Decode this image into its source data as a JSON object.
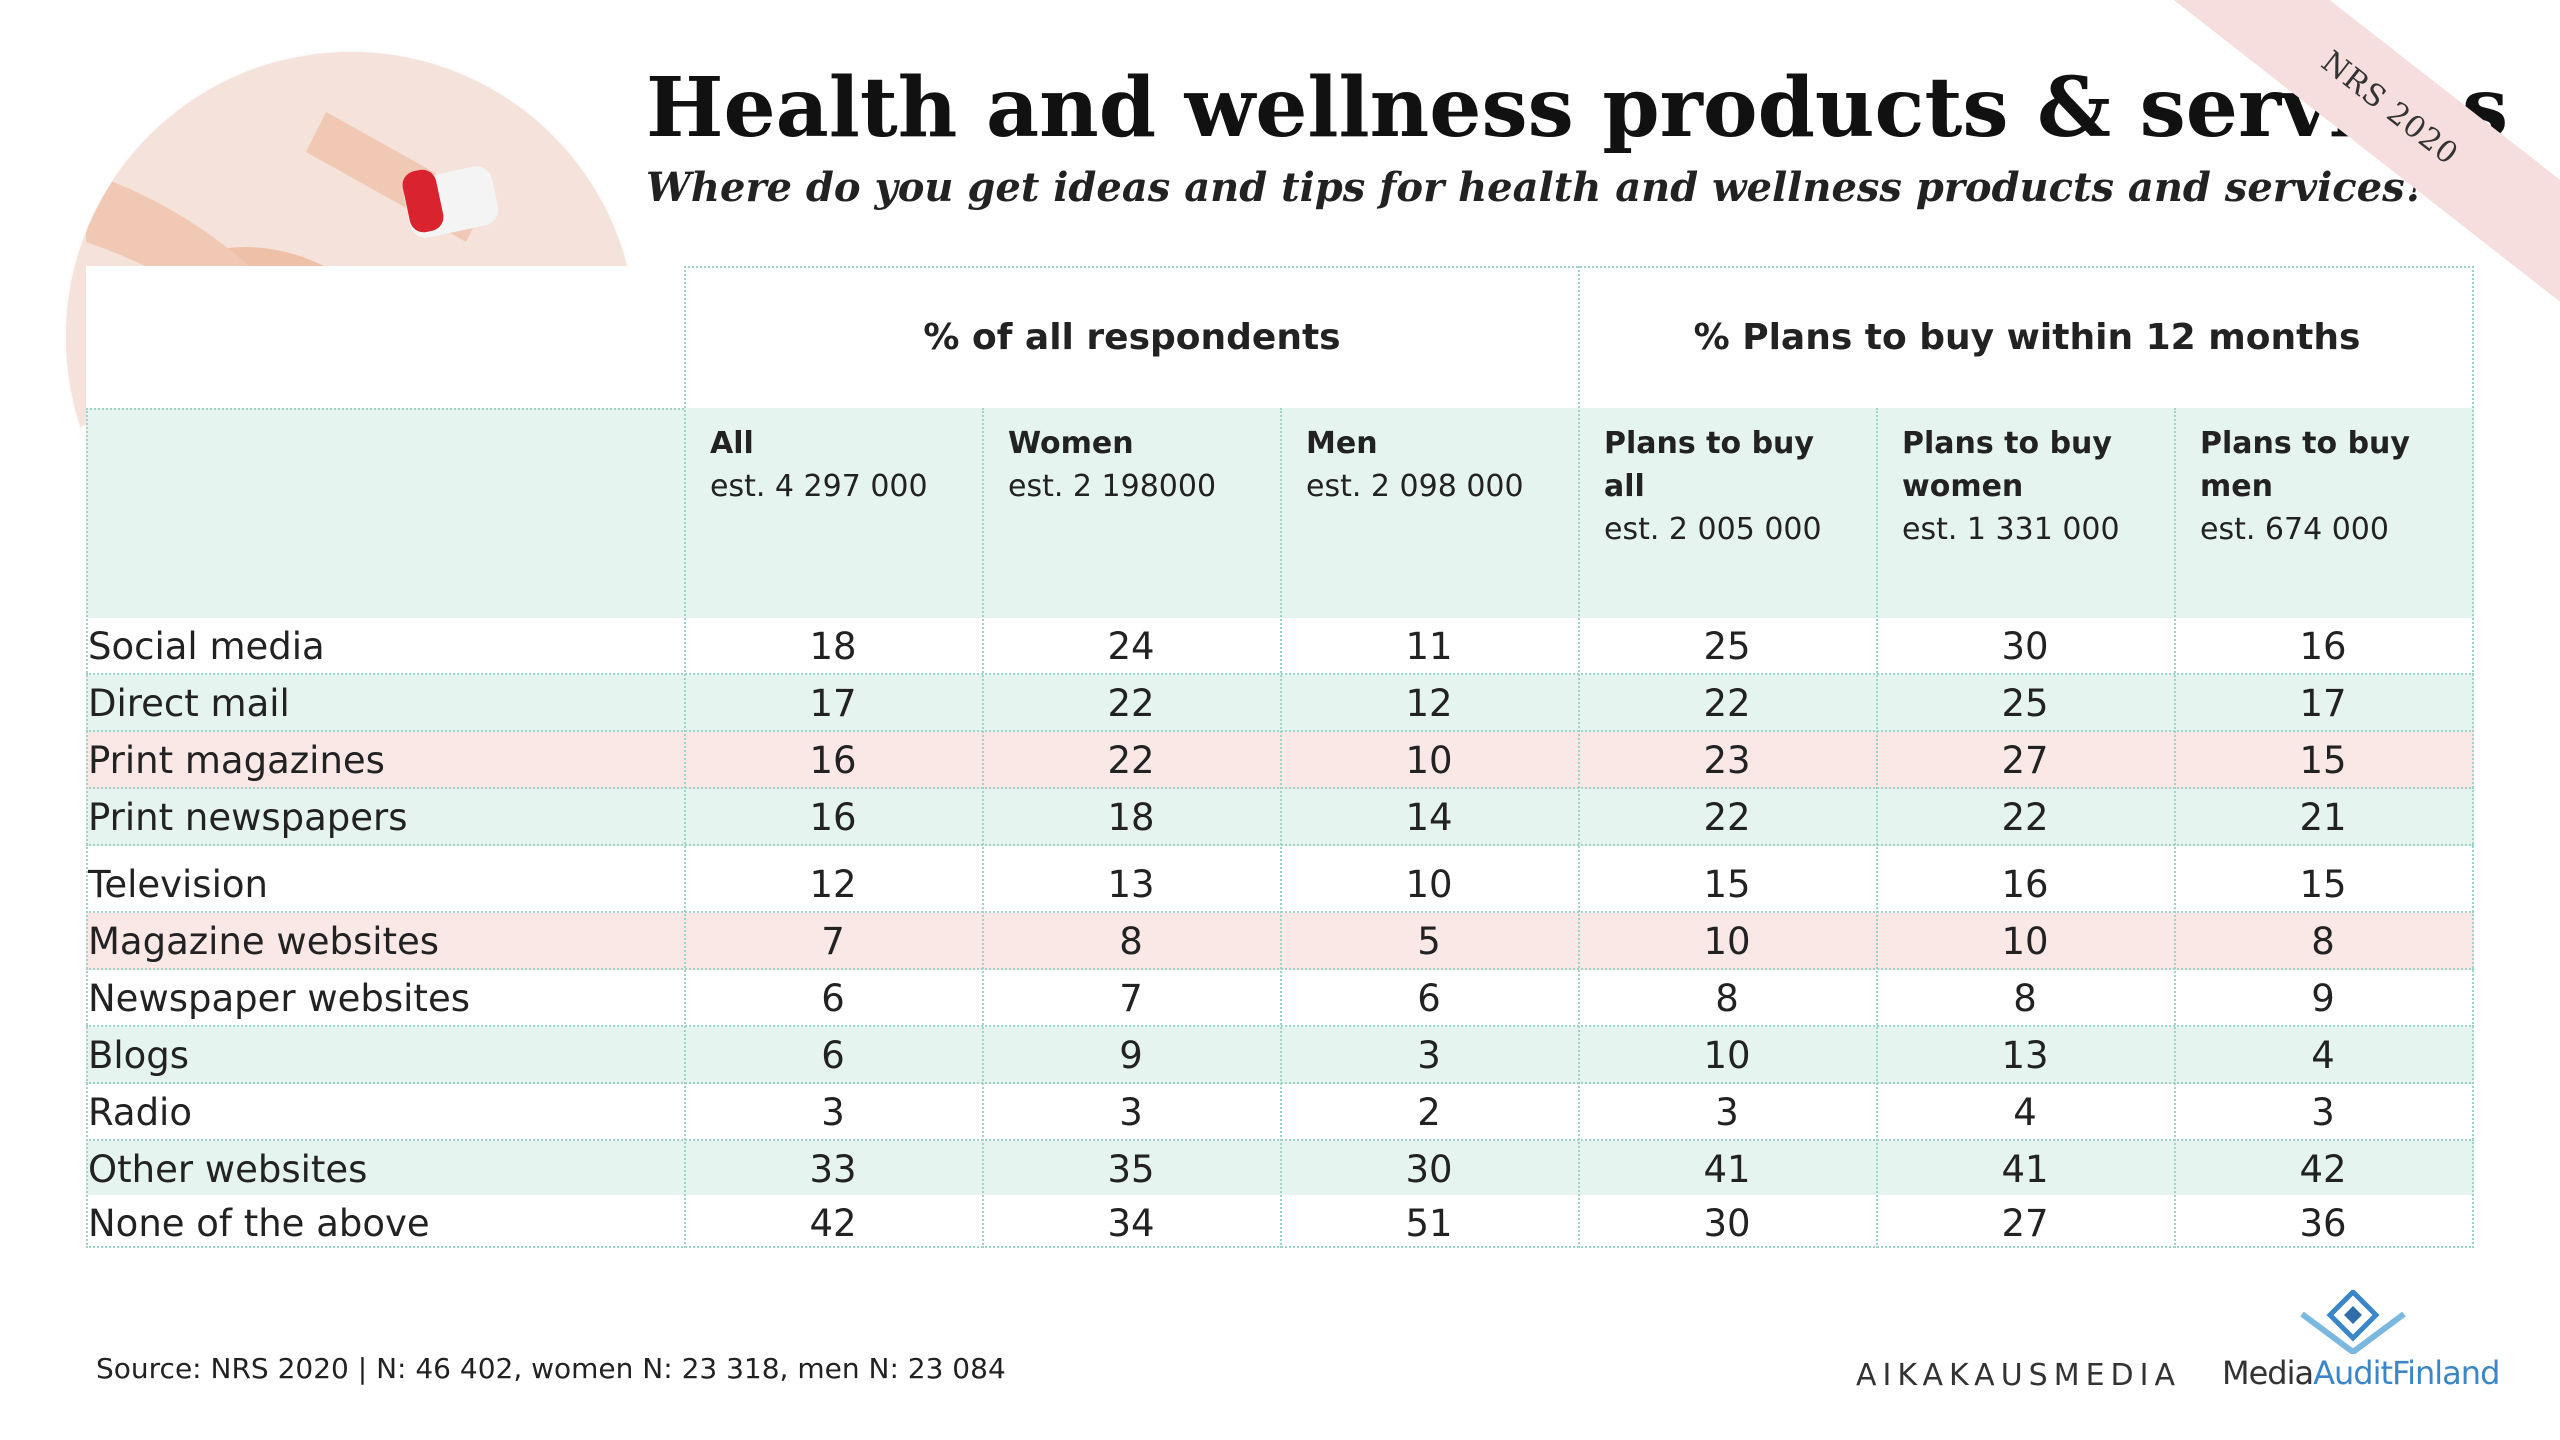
{
  "header": {
    "title": "Health and wellness products & services",
    "subtitle": "Where do you get ideas and tips for health and wellness products and services?",
    "badge": "NRS 2020"
  },
  "table": {
    "group_headers": [
      "% of all respondents",
      "% Plans to buy within 12 months"
    ],
    "columns": [
      {
        "lines": [
          "All"
        ],
        "est": "est. 4 297 000"
      },
      {
        "lines": [
          "Women"
        ],
        "est": "est. 2 198000"
      },
      {
        "lines": [
          "Men"
        ],
        "est": "est. 2 098 000"
      },
      {
        "lines": [
          "Plans to buy",
          "all"
        ],
        "est": "est. 2 005 000"
      },
      {
        "lines": [
          "Plans to buy",
          "women"
        ],
        "est": "est. 1 331 000"
      },
      {
        "lines": [
          "Plans to buy",
          "men"
        ],
        "est": "est. 674 000"
      }
    ],
    "rows": [
      {
        "label": "Social media",
        "values": [
          18,
          24,
          11,
          25,
          30,
          16
        ],
        "bg": "#ffffff"
      },
      {
        "label": "Direct mail",
        "values": [
          17,
          22,
          12,
          22,
          25,
          17
        ],
        "bg": "#e6f4f0"
      },
      {
        "label": "Print magazines",
        "values": [
          16,
          22,
          10,
          23,
          27,
          15
        ],
        "bg": "#fae8e7"
      },
      {
        "label": "Print newspapers",
        "values": [
          16,
          18,
          14,
          22,
          22,
          21
        ],
        "bg": "#e6f4f0"
      },
      {
        "label": "Television",
        "values": [
          12,
          13,
          10,
          15,
          16,
          15
        ],
        "bg": "#ffffff"
      },
      {
        "label": "Magazine websites",
        "values": [
          7,
          8,
          5,
          10,
          10,
          8
        ],
        "bg": "#fae8e7"
      },
      {
        "label": "Newspaper websites",
        "values": [
          6,
          7,
          6,
          8,
          8,
          9
        ],
        "bg": "#ffffff"
      },
      {
        "label": "Blogs",
        "values": [
          6,
          9,
          3,
          10,
          13,
          4
        ],
        "bg": "#e6f4f0"
      },
      {
        "label": "Radio",
        "values": [
          3,
          3,
          2,
          3,
          4,
          3
        ],
        "bg": "#ffffff"
      },
      {
        "label": "Other websites",
        "values": [
          33,
          35,
          30,
          41,
          41,
          42
        ],
        "bg": "#e6f4f0"
      },
      {
        "label": "None of the above",
        "values": [
          42,
          34,
          51,
          30,
          27,
          36
        ],
        "bg": "#ffffff"
      }
    ]
  },
  "footer": {
    "source": "Source: NRS 2020 | N: 46 402, women N: 23 318, men N: 23 084",
    "logo_aikakausmedia": "AIKAKAUSMEDIA",
    "logo_media_audit_1": "Media",
    "logo_media_audit_2": "Audit",
    "logo_media_audit_3": "Finland"
  }
}
